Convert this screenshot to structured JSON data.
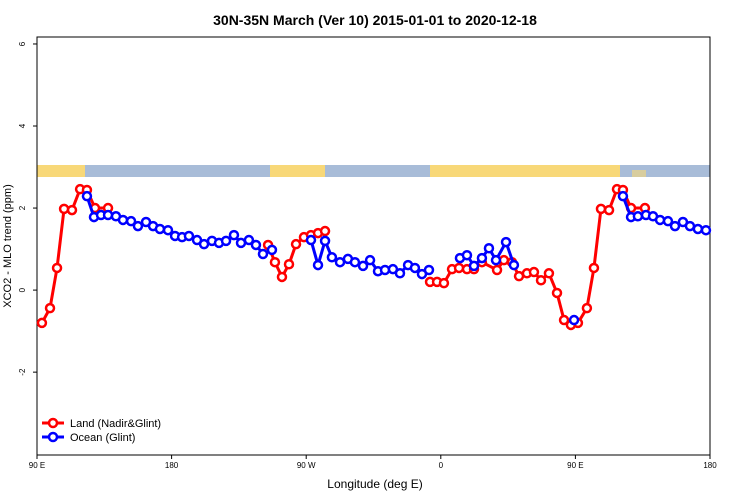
{
  "chart_data": {
    "type": "line",
    "title": "30N-35N March (Ver 10)   2015-01-01 to 2020-12-18",
    "xlabel": "Longitude (deg E)",
    "ylabel": "XCO2 - MLO trend (ppm)",
    "xlim": [
      90,
      540
    ],
    "ylim": [
      -4.02,
      6.17
    ],
    "xticks": [
      {
        "value": 90,
        "label": "90 E"
      },
      180,
      {
        "value": 270,
        "label": "90 W"
      },
      {
        "value": 360,
        "label": "0"
      },
      {
        "value": 450,
        "label": "90 E"
      },
      {
        "value": 540,
        "label": "180"
      }
    ],
    "yticks": [
      -2,
      0,
      2,
      4,
      6
    ],
    "legend": "bottom-left",
    "series": [
      {
        "name": "Land (Nadir&Glint)",
        "color": "#ff0000",
        "x": [
          93.3,
          98.7,
          103.4,
          108.1,
          113.4,
          118.8,
          123.4,
          128.8,
          137.5,
          null,
          244.5,
          249.1,
          253.8,
          258.5,
          263.2,
          268.5,
          273.2,
          277.9,
          282.6,
          null,
          352.8,
          357.5,
          362.1,
          367.5,
          372.2,
          377.5,
          382.2,
          387.5,
          397.6,
          402.2,
          407.6,
          412.3,
          417.6,
          422.3,
          427.0,
          432.3,
          437.7,
          442.4,
          447.0,
          451.7,
          457.7,
          462.4,
          467.1,
          472.5,
          477.8,
          481.8,
          487.2,
          496.5
        ],
        "values": [
          -0.8,
          -0.44,
          0.54,
          1.98,
          1.95,
          2.46,
          2.44,
          2.0,
          2.0,
          null,
          1.1,
          0.68,
          0.32,
          0.63,
          1.12,
          1.29,
          1.34,
          1.39,
          1.44,
          null,
          0.2,
          0.2,
          0.17,
          0.51,
          0.54,
          0.51,
          0.51,
          0.68,
          0.49,
          0.73,
          0.68,
          0.34,
          0.41,
          0.44,
          0.24,
          0.41,
          -0.07,
          -0.73,
          -0.85,
          -0.8,
          -0.44,
          0.54,
          1.98,
          1.95,
          2.46,
          2.44,
          2.0,
          2.0
        ]
      },
      {
        "name": "Ocean (Glint)",
        "color": "#0000ff",
        "x": [
          123.4,
          128.1,
          132.8,
          137.5,
          142.8,
          147.5,
          152.9,
          157.5,
          162.9,
          167.6,
          172.2,
          177.6,
          182.3,
          187.0,
          191.6,
          197.0,
          201.7,
          207.0,
          211.7,
          216.4,
          221.7,
          226.4,
          231.7,
          236.4,
          241.1,
          247.1,
          null,
          273.2,
          277.9,
          282.6,
          287.2,
          292.6,
          297.9,
          302.6,
          308.0,
          312.7,
          318.0,
          322.7,
          328.0,
          332.7,
          338.1,
          342.7,
          347.4,
          352.1,
          null,
          372.8,
          377.5,
          382.2,
          387.5,
          392.2,
          396.9,
          403.6,
          408.9,
          null,
          449.1,
          null,
          481.8,
          487.2,
          491.8,
          497.2,
          501.9,
          506.6,
          511.9,
          516.6,
          521.9,
          526.6,
          531.9,
          537.3
        ],
        "values": [
          2.29,
          1.78,
          1.83,
          1.83,
          1.8,
          1.71,
          1.68,
          1.56,
          1.66,
          1.56,
          1.49,
          1.46,
          1.32,
          1.29,
          1.32,
          1.22,
          1.12,
          1.2,
          1.15,
          1.2,
          1.34,
          1.15,
          1.22,
          1.1,
          0.88,
          0.98,
          null,
          1.22,
          0.61,
          1.2,
          0.8,
          0.68,
          0.76,
          0.68,
          0.59,
          0.73,
          0.46,
          0.49,
          0.51,
          0.41,
          0.61,
          0.54,
          0.39,
          0.49,
          null,
          0.78,
          0.85,
          0.59,
          0.78,
          1.02,
          0.73,
          1.17,
          0.61,
          null,
          -0.73,
          null,
          2.29,
          1.78,
          1.8,
          1.83,
          1.8,
          1.71,
          1.68,
          1.56,
          1.66,
          1.56,
          1.49,
          1.46
        ]
      }
    ]
  }
}
